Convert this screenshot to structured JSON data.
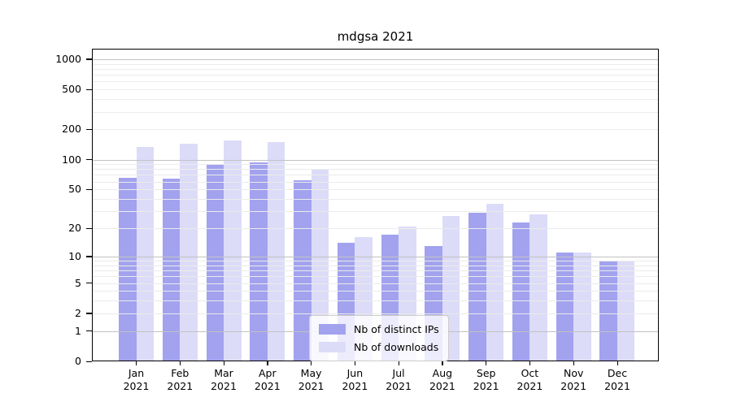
{
  "chart_data": {
    "type": "bar",
    "title": "mdgsa 2021",
    "months": [
      "Jan",
      "Feb",
      "Mar",
      "Apr",
      "May",
      "Jun",
      "Jul",
      "Aug",
      "Sep",
      "Oct",
      "Nov",
      "Dec"
    ],
    "year": "2021",
    "series": [
      {
        "name": "Nb of distinct IPs",
        "color": "#a2a2ef",
        "values": [
          65,
          64,
          91,
          94,
          62,
          14,
          17,
          13,
          29,
          23,
          11,
          9
        ]
      },
      {
        "name": "Nb of downloads",
        "color": "#dcdcf8",
        "values": [
          133,
          145,
          156,
          151,
          81,
          16,
          21,
          27,
          36,
          28,
          11,
          9
        ]
      }
    ],
    "y_scale": "log10(1+x)",
    "y_ticks": [
      0,
      1,
      2,
      5,
      10,
      20,
      50,
      100,
      200,
      500,
      1000
    ],
    "y_major_gridlines": [
      1,
      10,
      100,
      1000
    ],
    "ylim": [
      0,
      1600
    ],
    "grid": "horizontal",
    "legend_position": "bottom-center"
  }
}
